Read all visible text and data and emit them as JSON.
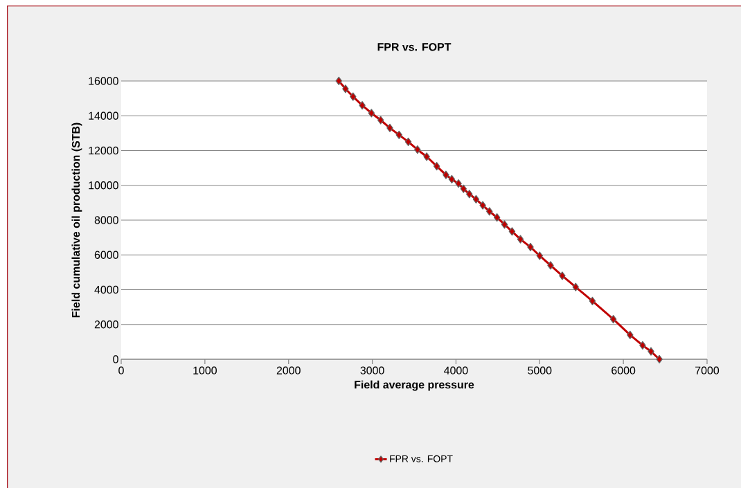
{
  "chart_data": {
    "type": "line",
    "title": "FPR vs. FOPT",
    "xlabel": "Field average pressure",
    "ylabel": "Field cumulative oil production (STB)",
    "series": [
      {
        "name": "FPR vs. FOPT",
        "color": "#c00000",
        "x": [
          6430,
          6330,
          6230,
          6080,
          5880,
          5630,
          5430,
          5270,
          5130,
          5000,
          4890,
          4770,
          4670,
          4580,
          4490,
          4400,
          4320,
          4240,
          4160,
          4090,
          4030,
          3950,
          3880,
          3770,
          3650,
          3540,
          3430,
          3320,
          3210,
          3100,
          2990,
          2880,
          2770,
          2680,
          2600
        ],
        "values": [
          0,
          450,
          800,
          1400,
          2300,
          3350,
          4150,
          4800,
          5400,
          5950,
          6450,
          6900,
          7350,
          7750,
          8150,
          8500,
          8850,
          9200,
          9500,
          9800,
          10100,
          10350,
          10600,
          11100,
          11650,
          12050,
          12500,
          12900,
          13300,
          13750,
          14150,
          14600,
          15100,
          15550,
          16000
        ]
      }
    ],
    "xlim": [
      0,
      7000
    ],
    "xticks": [
      0,
      1000,
      2000,
      3000,
      4000,
      5000,
      6000,
      7000
    ],
    "ylim": [
      0,
      16000
    ],
    "yticks": [
      0,
      2000,
      4000,
      6000,
      8000,
      10000,
      12000,
      14000,
      16000
    ],
    "grid": "y",
    "legend": "bottom",
    "marker": "diamond",
    "line_style": "solid"
  }
}
